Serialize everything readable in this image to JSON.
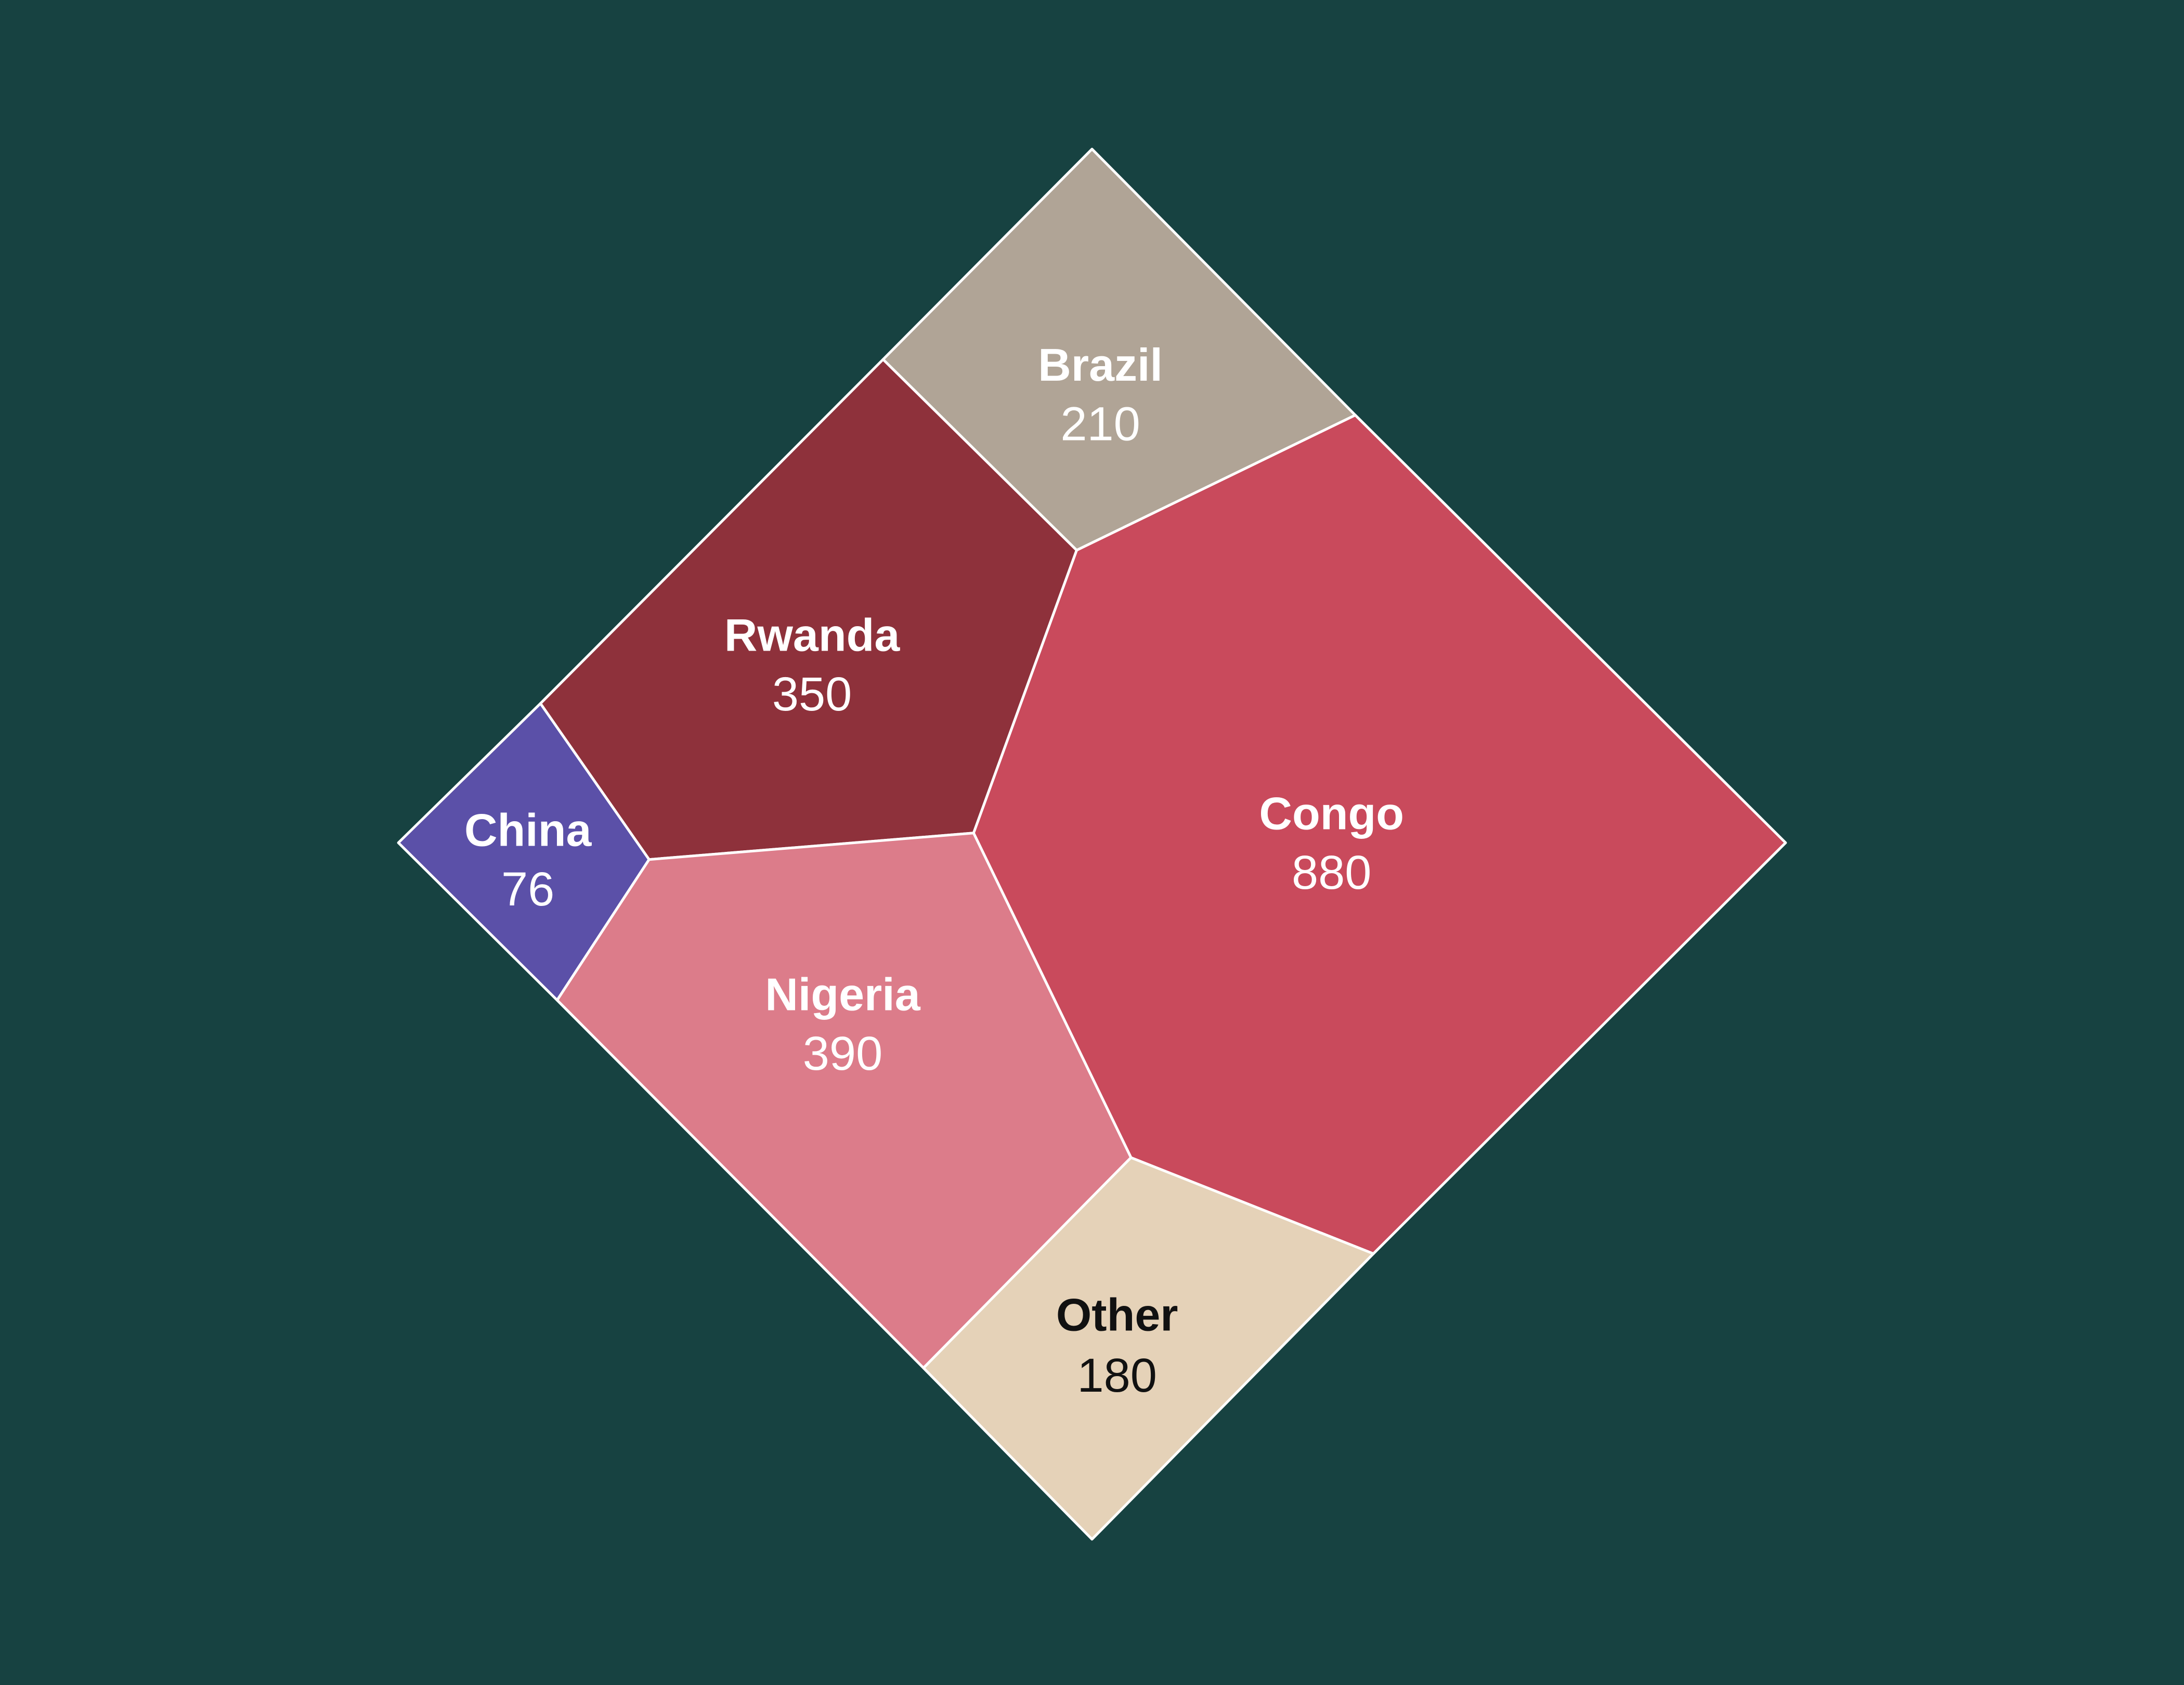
{
  "background_color": "#174241",
  "chart_data": {
    "type": "voronoi-treemap",
    "cells": [
      {
        "label": "Brazil",
        "value": 210,
        "color": "#b0a496",
        "text_color": "#ffffff"
      },
      {
        "label": "Rwanda",
        "value": 350,
        "color": "#8e313b",
        "text_color": "#ffffff"
      },
      {
        "label": "Congo",
        "value": 880,
        "color": "#c94a5c",
        "text_color": "#ffffff"
      },
      {
        "label": "China",
        "value": 76,
        "color": "#5b50a8",
        "text_color": "#ffffff"
      },
      {
        "label": "Nigeria",
        "value": 390,
        "color": "#dc7c8a",
        "text_color": "#ffffff"
      },
      {
        "label": "Other",
        "value": 180,
        "color": "#e5d2b8",
        "text_color": "#111111"
      }
    ]
  }
}
